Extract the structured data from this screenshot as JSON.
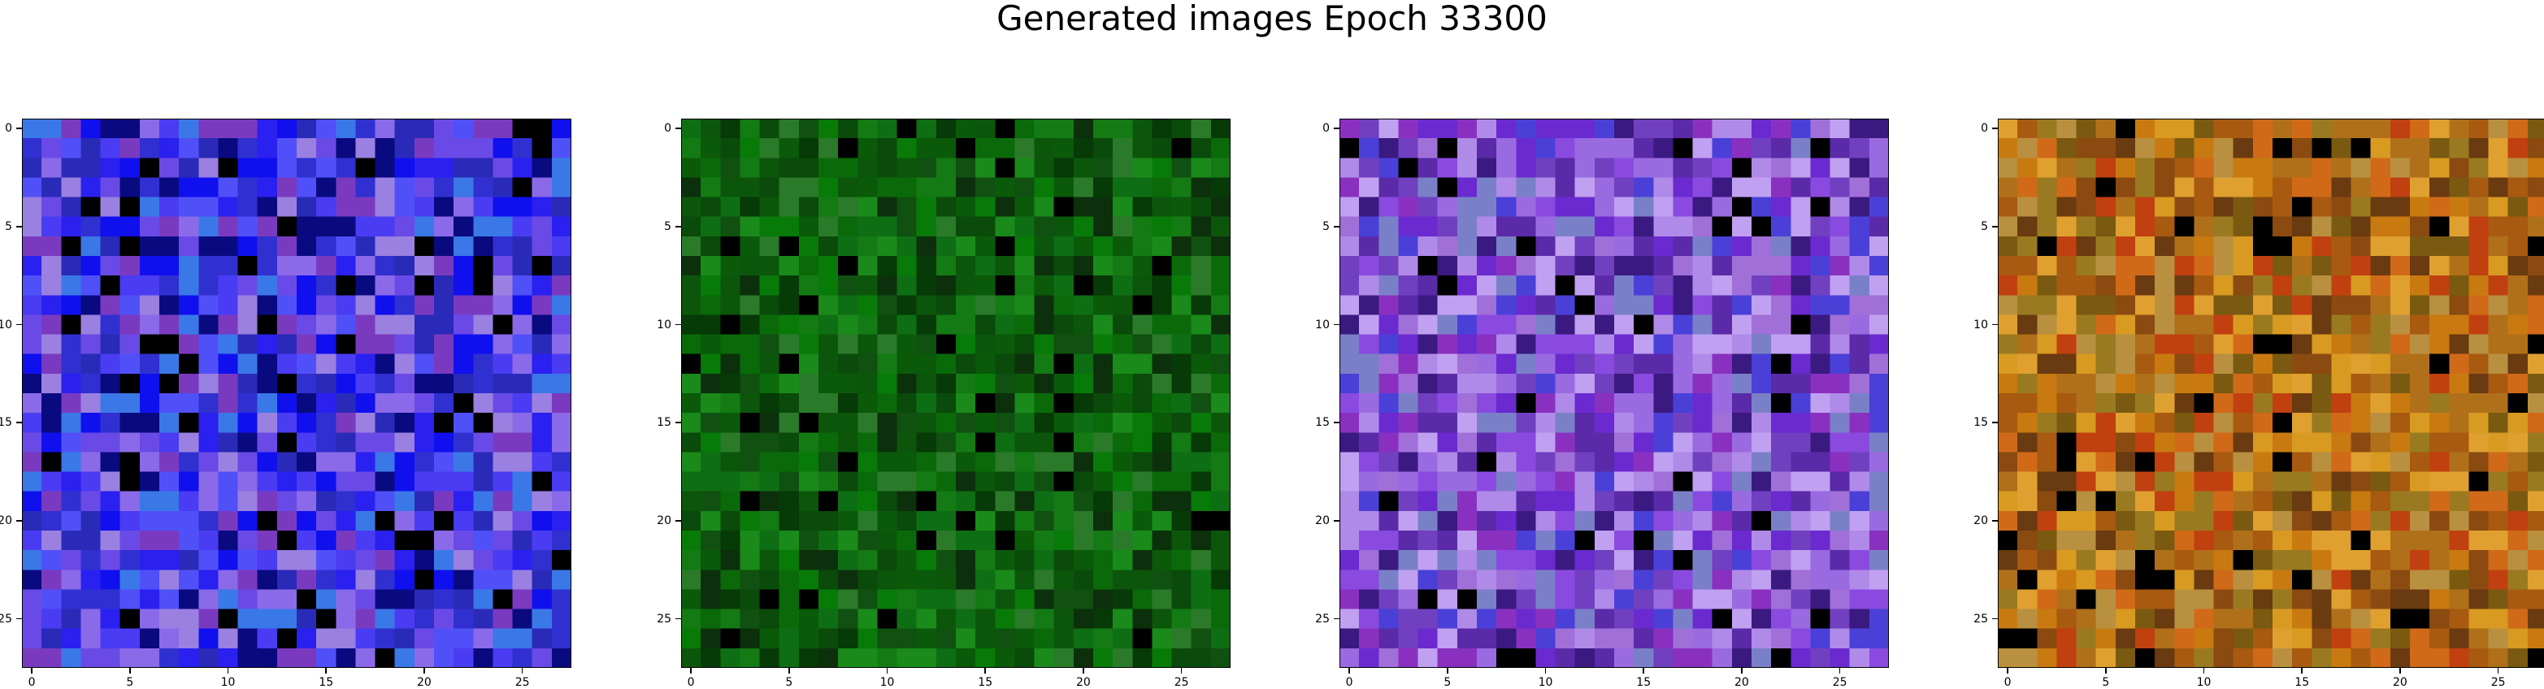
{
  "figure": {
    "title": "Generated images Epoch 33300"
  },
  "axis": {
    "ticks": [
      0,
      5,
      10,
      15,
      20,
      25
    ],
    "pixels": 28
  },
  "panels": [
    {
      "id": "image-1",
      "dominant_color": "#1a1ae6",
      "palette": [
        "#1010ee",
        "#2a20f0",
        "#4a3cf2",
        "#6a4ae6",
        "#2a2ab8",
        "#0a0a80",
        "#8a6ae8",
        "#5050f8",
        "#3030d0",
        "#7a3ac0",
        "#3a78e8",
        "#9a80e0"
      ]
    },
    {
      "id": "image-2",
      "dominant_color": "#0b5c0b",
      "palette": [
        "#0a6a0a",
        "#0c560c",
        "#105010",
        "#087a08",
        "#063a06",
        "#0e6e14",
        "#147a14",
        "#0a4a0a",
        "#1a8a1a",
        "#0c300c",
        "#2a7a2a",
        "#0a5a0a"
      ]
    },
    {
      "id": "image-3",
      "dominant_color": "#7a3ad0",
      "palette": [
        "#8a4ae0",
        "#6a2ad0",
        "#9a6ae0",
        "#b08ae8",
        "#7040c0",
        "#5a2aa8",
        "#3a1a80",
        "#a070d8",
        "#c0a0f0",
        "#4a40d8",
        "#7a80c8",
        "#8a30c0"
      ]
    },
    {
      "id": "image-4",
      "dominant_color": "#b86a10",
      "palette": [
        "#c87a10",
        "#a85a10",
        "#d89a20",
        "#8a4a10",
        "#b0701a",
        "#6a3a10",
        "#e0a030",
        "#c04010",
        "#9a7a20",
        "#d06a18",
        "#7a5a10",
        "#b89040"
      ]
    }
  ]
}
